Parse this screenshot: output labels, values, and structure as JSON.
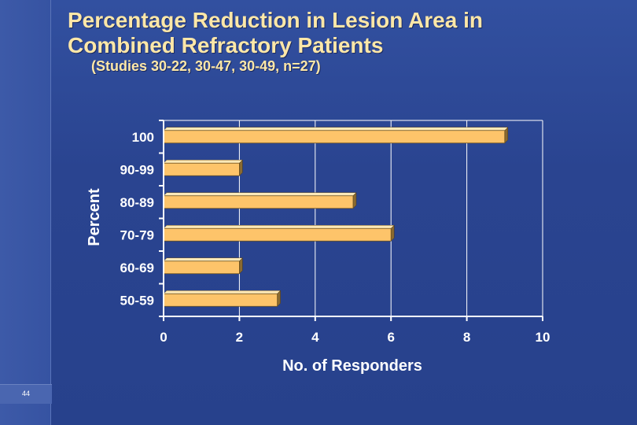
{
  "slide": {
    "title_line1": "Percentage Reduction in Lesion Area in",
    "title_line2": "Combined Refractory Patients",
    "subtitle": "(Studies 30-22, 30-47, 30-49, n=27)",
    "slide_number": "44"
  },
  "colors": {
    "background": "#2a4490",
    "title": "#fde7a8",
    "bar_front": "#fdc46a",
    "bar_top": "#fde9b8",
    "bar_side": "#8a6a30",
    "axis": "#ffffff"
  },
  "chart_data": {
    "type": "bar",
    "orientation": "horizontal",
    "title": "Percentage Reduction in Lesion Area in Combined Refractory Patients",
    "subtitle": "(Studies 30-22, 30-47, 30-49, n=27)",
    "xlabel": "No. of Responders",
    "ylabel": "Percent",
    "categories": [
      "100",
      "90-99",
      "80-89",
      "70-79",
      "60-69",
      "50-59"
    ],
    "values": [
      9,
      2,
      5,
      6,
      2,
      3
    ],
    "xlim": [
      0,
      10
    ],
    "xticks": [
      "0",
      "2",
      "4",
      "6",
      "8",
      "10"
    ],
    "grid": "vertical",
    "legend": "none"
  }
}
